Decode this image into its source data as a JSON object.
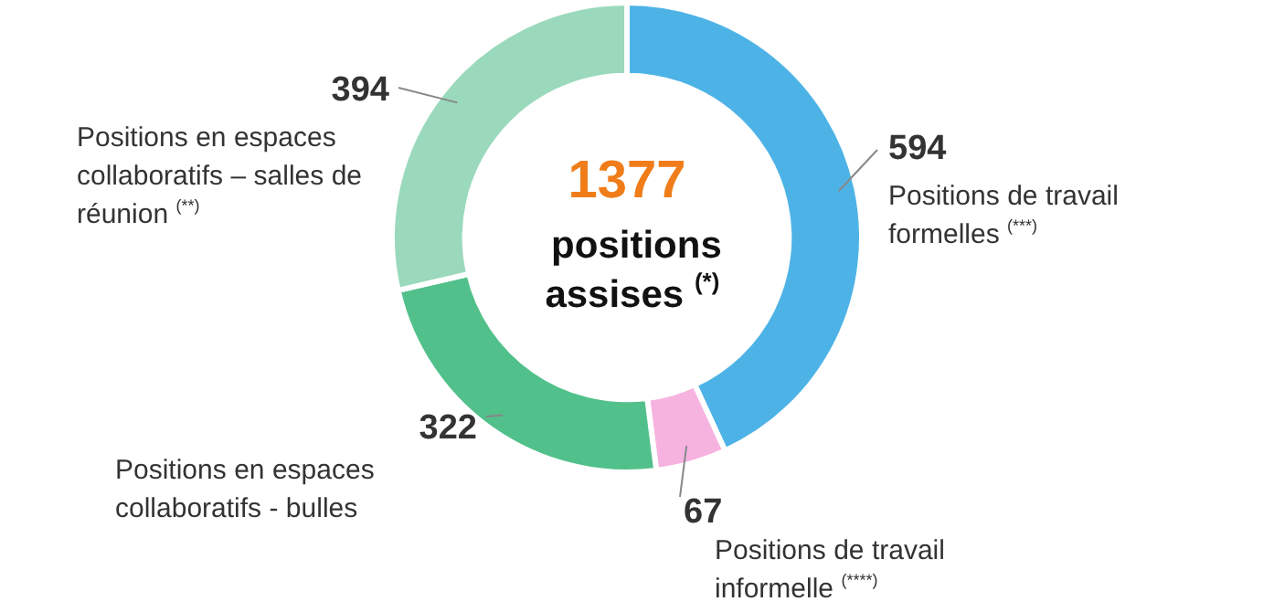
{
  "chart_data": {
    "type": "donut",
    "title": "1377",
    "subtitle": "positions assises $^{(*)}$",
    "categories": [
      "Positions de travail formelles $^{(***)}$",
      "Positions de travail informelle $^{(****)}$",
      "Positions en espaces collaboratifs - bulles",
      "Positions en espaces collaboratifs – salles de réunion $^{(**)}$"
    ],
    "values": [
      594,
      67,
      322,
      394
    ],
    "colors": [
      "#4db3e6",
      "#f7b3e0",
      "#52c08a",
      "#9ad9bc"
    ],
    "data_labels": true,
    "legend": false
  }
}
